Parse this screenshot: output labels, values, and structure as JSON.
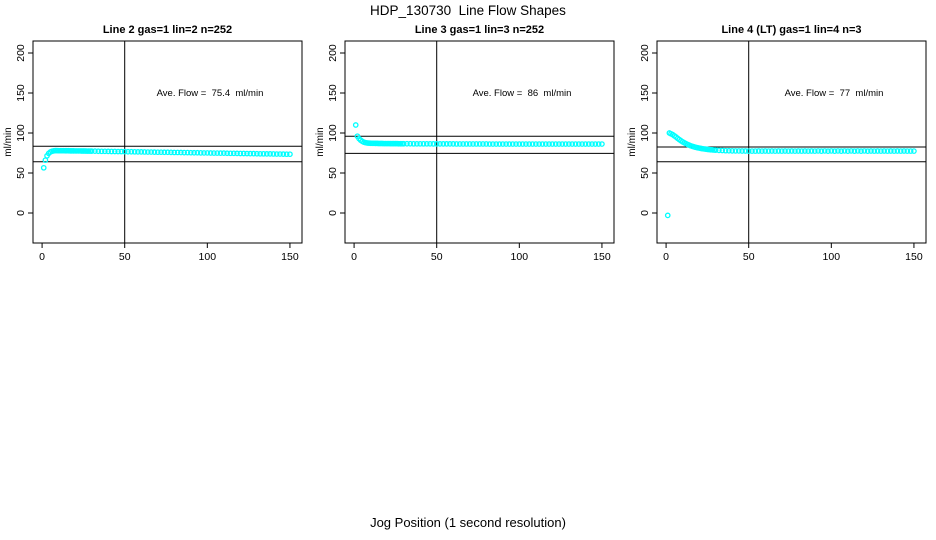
{
  "figure": {
    "title": "HDP_130730  Line Flow Shapes",
    "xlabel": "Jog Position (1 second resolution)",
    "background_color": "#ffffff",
    "marker_color": "#00ffff",
    "line_color": "#000000"
  },
  "chart_data": [
    {
      "type": "scatter",
      "title": "Line 2 gas=1 lin=2 n=252",
      "annotation": "Ave. Flow =  75.4  ml/min",
      "ave_flow": 75.4,
      "ylabel": "ml/min",
      "xticks": [
        0,
        50,
        100,
        150
      ],
      "yticks": [
        0,
        50,
        100,
        150,
        200
      ],
      "xlim": [
        -5.5,
        157.3
      ],
      "ylim": [
        -37.5,
        215
      ],
      "grid": false,
      "vline_x": 50,
      "hlines": [
        83.5,
        64
      ],
      "points": [
        [
          1,
          56.5
        ],
        [
          2,
          66
        ],
        [
          3,
          71.5
        ],
        [
          4,
          74.5
        ],
        [
          5,
          76.3
        ],
        [
          6,
          77.2
        ],
        [
          7,
          77.7
        ],
        [
          8,
          78
        ],
        [
          9,
          78
        ],
        [
          10,
          77.9
        ],
        [
          11,
          77.9
        ],
        [
          12,
          77.9
        ],
        [
          13,
          77.9
        ],
        [
          14,
          77.8
        ],
        [
          15,
          77.8
        ],
        [
          16,
          77.8
        ],
        [
          17,
          77.7
        ],
        [
          18,
          77.7
        ],
        [
          19,
          77.7
        ],
        [
          20,
          77.6
        ],
        [
          21,
          77.6
        ],
        [
          22,
          77.6
        ],
        [
          23,
          77.6
        ],
        [
          24,
          77.5
        ],
        [
          25,
          77.5
        ],
        [
          26,
          77.5
        ],
        [
          27,
          77.4
        ],
        [
          28,
          77.4
        ],
        [
          29,
          77.4
        ],
        [
          30,
          77.3
        ],
        [
          32,
          77.3
        ],
        [
          34,
          77.2
        ],
        [
          36,
          77.1
        ],
        [
          38,
          77.1
        ],
        [
          40,
          77
        ],
        [
          42,
          76.9
        ],
        [
          44,
          76.9
        ],
        [
          46,
          76.8
        ],
        [
          48,
          76.8
        ],
        [
          50,
          76.7
        ],
        [
          52,
          76.6
        ],
        [
          54,
          76.6
        ],
        [
          56,
          76.5
        ],
        [
          58,
          76.4
        ],
        [
          60,
          76.4
        ],
        [
          62,
          76.3
        ],
        [
          64,
          76.2
        ],
        [
          66,
          76.2
        ],
        [
          68,
          76.1
        ],
        [
          70,
          76
        ],
        [
          72,
          76
        ],
        [
          74,
          75.9
        ],
        [
          76,
          75.9
        ],
        [
          78,
          75.8
        ],
        [
          80,
          75.7
        ],
        [
          82,
          75.7
        ],
        [
          84,
          75.6
        ],
        [
          86,
          75.5
        ],
        [
          88,
          75.5
        ],
        [
          90,
          75.4
        ],
        [
          92,
          75.3
        ],
        [
          94,
          75.3
        ],
        [
          96,
          75.2
        ],
        [
          98,
          75.1
        ],
        [
          100,
          75.1
        ],
        [
          102,
          75
        ],
        [
          104,
          74.9
        ],
        [
          106,
          74.9
        ],
        [
          108,
          74.8
        ],
        [
          110,
          74.8
        ],
        [
          112,
          74.7
        ],
        [
          114,
          74.6
        ],
        [
          116,
          74.6
        ],
        [
          118,
          74.5
        ],
        [
          120,
          74.4
        ],
        [
          122,
          74.4
        ],
        [
          124,
          74.3
        ],
        [
          126,
          74.2
        ],
        [
          128,
          74.2
        ],
        [
          130,
          74.1
        ],
        [
          132,
          74
        ],
        [
          134,
          74
        ],
        [
          136,
          73.9
        ],
        [
          138,
          73.9
        ],
        [
          140,
          73.8
        ],
        [
          142,
          73.7
        ],
        [
          144,
          73.7
        ],
        [
          146,
          73.6
        ],
        [
          148,
          73.5
        ],
        [
          150,
          73.5
        ]
      ]
    },
    {
      "type": "scatter",
      "title": "Line 3 gas=1 lin=3 n=252",
      "annotation": "Ave. Flow =  86  ml/min",
      "ave_flow": 86,
      "ylabel": "ml/min",
      "xticks": [
        0,
        50,
        100,
        150
      ],
      "yticks": [
        0,
        50,
        100,
        150,
        200
      ],
      "xlim": [
        -5.5,
        157.3
      ],
      "ylim": [
        -37.5,
        215
      ],
      "grid": false,
      "vline_x": 50,
      "hlines": [
        96,
        74.5
      ],
      "points": [
        [
          1,
          110
        ],
        [
          2,
          96
        ],
        [
          3,
          93
        ],
        [
          4,
          91
        ],
        [
          5,
          89.5
        ],
        [
          6,
          88.5
        ],
        [
          7,
          87.9
        ],
        [
          8,
          87.5
        ],
        [
          9,
          87.3
        ],
        [
          10,
          87.2
        ],
        [
          11,
          87.1
        ],
        [
          12,
          87.1
        ],
        [
          13,
          87
        ],
        [
          14,
          87
        ],
        [
          15,
          86.9
        ],
        [
          16,
          86.9
        ],
        [
          17,
          86.9
        ],
        [
          18,
          86.8
        ],
        [
          19,
          86.8
        ],
        [
          20,
          86.8
        ],
        [
          21,
          86.8
        ],
        [
          22,
          86.7
        ],
        [
          23,
          86.7
        ],
        [
          24,
          86.7
        ],
        [
          25,
          86.7
        ],
        [
          26,
          86.7
        ],
        [
          27,
          86.6
        ],
        [
          28,
          86.6
        ],
        [
          29,
          86.6
        ],
        [
          30,
          86.6
        ],
        [
          32,
          86.6
        ],
        [
          34,
          86.6
        ],
        [
          36,
          86.5
        ],
        [
          38,
          86.5
        ],
        [
          40,
          86.5
        ],
        [
          42,
          86.5
        ],
        [
          44,
          86.5
        ],
        [
          46,
          86.5
        ],
        [
          48,
          86.4
        ],
        [
          50,
          86.4
        ],
        [
          52,
          86.4
        ],
        [
          54,
          86.4
        ],
        [
          56,
          86.4
        ],
        [
          58,
          86.4
        ],
        [
          60,
          86.4
        ],
        [
          62,
          86.3
        ],
        [
          64,
          86.3
        ],
        [
          66,
          86.3
        ],
        [
          68,
          86.3
        ],
        [
          70,
          86.3
        ],
        [
          72,
          86.3
        ],
        [
          74,
          86.3
        ],
        [
          76,
          86.3
        ],
        [
          78,
          86.3
        ],
        [
          80,
          86.3
        ],
        [
          82,
          86.2
        ],
        [
          84,
          86.2
        ],
        [
          86,
          86.2
        ],
        [
          88,
          86.2
        ],
        [
          90,
          86.2
        ],
        [
          92,
          86.2
        ],
        [
          94,
          86.2
        ],
        [
          96,
          86.2
        ],
        [
          98,
          86.2
        ],
        [
          100,
          86.2
        ],
        [
          102,
          86.2
        ],
        [
          104,
          86.2
        ],
        [
          106,
          86.2
        ],
        [
          108,
          86.2
        ],
        [
          110,
          86.2
        ],
        [
          112,
          86.2
        ],
        [
          114,
          86.2
        ],
        [
          116,
          86.2
        ],
        [
          118,
          86.2
        ],
        [
          120,
          86.2
        ],
        [
          122,
          86.2
        ],
        [
          124,
          86.2
        ],
        [
          126,
          86.2
        ],
        [
          128,
          86.2
        ],
        [
          130,
          86.2
        ],
        [
          132,
          86.2
        ],
        [
          134,
          86.2
        ],
        [
          136,
          86.2
        ],
        [
          138,
          86.2
        ],
        [
          140,
          86.2
        ],
        [
          142,
          86.2
        ],
        [
          144,
          86.2
        ],
        [
          146,
          86.2
        ],
        [
          148,
          86.2
        ],
        [
          150,
          86.2
        ]
      ]
    },
    {
      "type": "scatter",
      "title": "Line 4 (LT) gas=1 lin=4 n=3",
      "annotation": "Ave. Flow =  77  ml/min",
      "ave_flow": 77,
      "ylabel": "ml/min",
      "xticks": [
        0,
        50,
        100,
        150
      ],
      "yticks": [
        0,
        50,
        100,
        150,
        200
      ],
      "xlim": [
        -5.5,
        157.3
      ],
      "ylim": [
        -37.5,
        215
      ],
      "grid": false,
      "vline_x": 50,
      "hlines": [
        82.5,
        64
      ],
      "points": [
        [
          1,
          -3
        ],
        [
          2,
          100
        ],
        [
          3,
          99
        ],
        [
          4,
          98
        ],
        [
          5,
          96.5
        ],
        [
          6,
          95
        ],
        [
          7,
          93.3
        ],
        [
          8,
          91.8
        ],
        [
          9,
          90.3
        ],
        [
          10,
          89
        ],
        [
          11,
          87.8
        ],
        [
          12,
          86.7
        ],
        [
          13,
          85.7
        ],
        [
          14,
          84.8
        ],
        [
          15,
          84
        ],
        [
          16,
          83.3
        ],
        [
          17,
          82.7
        ],
        [
          18,
          82.1
        ],
        [
          19,
          81.6
        ],
        [
          20,
          81.2
        ],
        [
          21,
          80.8
        ],
        [
          22,
          80.4
        ],
        [
          23,
          80.1
        ],
        [
          24,
          79.8
        ],
        [
          25,
          79.5
        ],
        [
          26,
          79.3
        ],
        [
          27,
          79.1
        ],
        [
          28,
          78.9
        ],
        [
          29,
          78.7
        ],
        [
          30,
          78.6
        ],
        [
          32,
          78.3
        ],
        [
          34,
          78.1
        ],
        [
          36,
          77.9
        ],
        [
          38,
          77.8
        ],
        [
          40,
          77.7
        ],
        [
          42,
          77.6
        ],
        [
          44,
          77.6
        ],
        [
          46,
          77.5
        ],
        [
          48,
          77.5
        ],
        [
          50,
          77.4
        ],
        [
          52,
          77.4
        ],
        [
          54,
          77.4
        ],
        [
          56,
          77.5
        ],
        [
          58,
          77.4
        ],
        [
          60,
          77.5
        ],
        [
          62,
          77.4
        ],
        [
          64,
          77.5
        ],
        [
          66,
          77.4
        ],
        [
          68,
          77.5
        ],
        [
          70,
          77.4
        ],
        [
          72,
          77.5
        ],
        [
          74,
          77.4
        ],
        [
          76,
          77.5
        ],
        [
          78,
          77.4
        ],
        [
          80,
          77.5
        ],
        [
          82,
          77.4
        ],
        [
          84,
          77.5
        ],
        [
          86,
          77.4
        ],
        [
          88,
          77.5
        ],
        [
          90,
          77.4
        ],
        [
          92,
          77.6
        ],
        [
          94,
          77.3
        ],
        [
          96,
          77.6
        ],
        [
          98,
          77.3
        ],
        [
          100,
          77.6
        ],
        [
          102,
          77.3
        ],
        [
          104,
          77.6
        ],
        [
          106,
          77.3
        ],
        [
          108,
          77.6
        ],
        [
          110,
          77.3
        ],
        [
          112,
          77.6
        ],
        [
          114,
          77.3
        ],
        [
          116,
          77.6
        ],
        [
          118,
          77.3
        ],
        [
          120,
          77.6
        ],
        [
          122,
          77.3
        ],
        [
          124,
          77.5
        ],
        [
          126,
          77.4
        ],
        [
          128,
          77.5
        ],
        [
          130,
          77.4
        ],
        [
          132,
          77.5
        ],
        [
          134,
          77.4
        ],
        [
          136,
          77.5
        ],
        [
          138,
          77.4
        ],
        [
          140,
          77.5
        ],
        [
          142,
          77.4
        ],
        [
          144,
          77.5
        ],
        [
          146,
          77.4
        ],
        [
          148,
          77.4
        ],
        [
          150,
          77.4
        ]
      ]
    }
  ]
}
